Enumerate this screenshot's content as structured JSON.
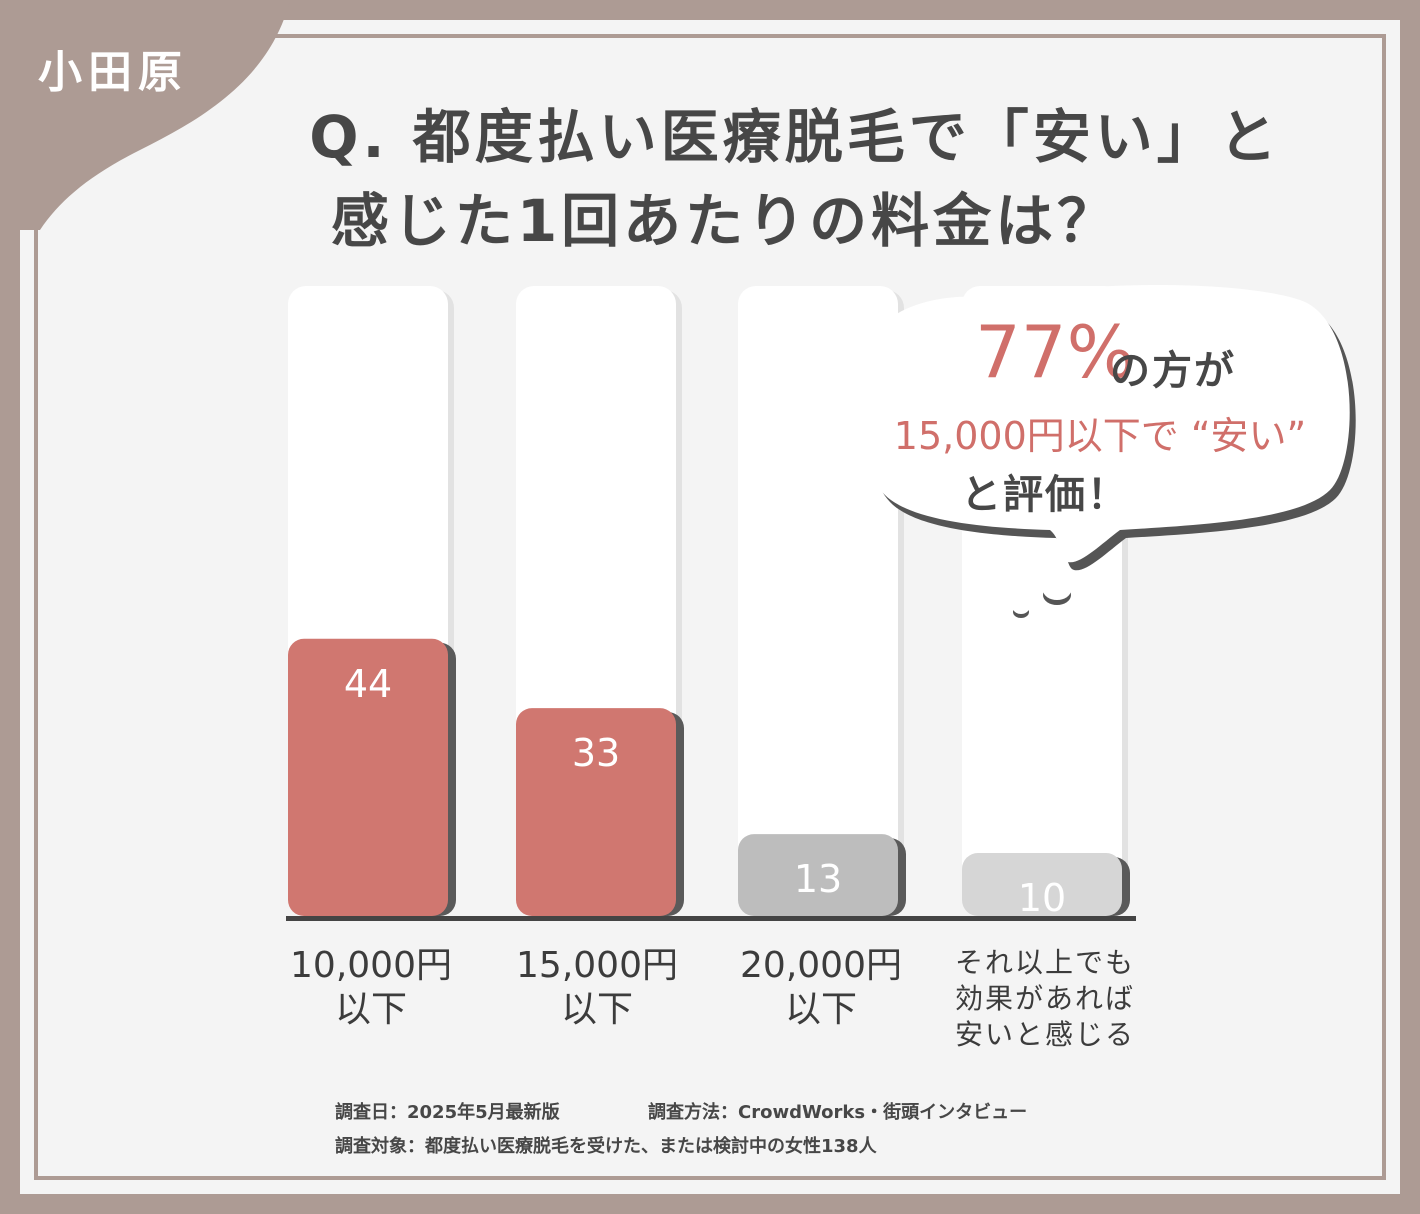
{
  "badge": {
    "city": "小田原"
  },
  "title": {
    "line1": "Q. 都度払い医療脱毛で「安い」と",
    "line2": "感じた1回あたりの料金は？"
  },
  "callout": {
    "percent": "77%",
    "percent_suffix": "の方が",
    "line2": "15,000円以下で “安い”",
    "line3": "と評価！"
  },
  "chart_data": {
    "type": "bar",
    "categories": [
      "10,000円以下",
      "15,000円以下",
      "20,000円以下",
      "それ以上でも効果があれば安いと感じる"
    ],
    "values": [
      44,
      33,
      13,
      10
    ],
    "category_lines": [
      [
        "10,000円",
        "以下"
      ],
      [
        "15,000円",
        "以下"
      ],
      [
        "20,000円",
        "以下"
      ],
      [
        "それ以上でも",
        "効果があれば",
        "安いと感じる"
      ]
    ],
    "title": "Q. 都度払い医療脱毛で「安い」と感じた1回あたりの料金は？",
    "xlabel": "",
    "ylabel": "",
    "ylim": [
      0,
      100
    ],
    "colors": [
      "#d07770",
      "#d07770",
      "#bdbdbd",
      "#d6d6d6"
    ],
    "grid": false,
    "legend": "none"
  },
  "footnote": {
    "line1a": "調査日：2025年5月最新版",
    "line1b": "調査方法：CrowdWorks・街頭インタビュー",
    "line2": "調査対象：都度払い医療脱毛を受けた、または検討中の女性138人"
  },
  "colors": {
    "frame": "#ad9b94",
    "accent": "#d06f6a",
    "text": "#474747"
  }
}
